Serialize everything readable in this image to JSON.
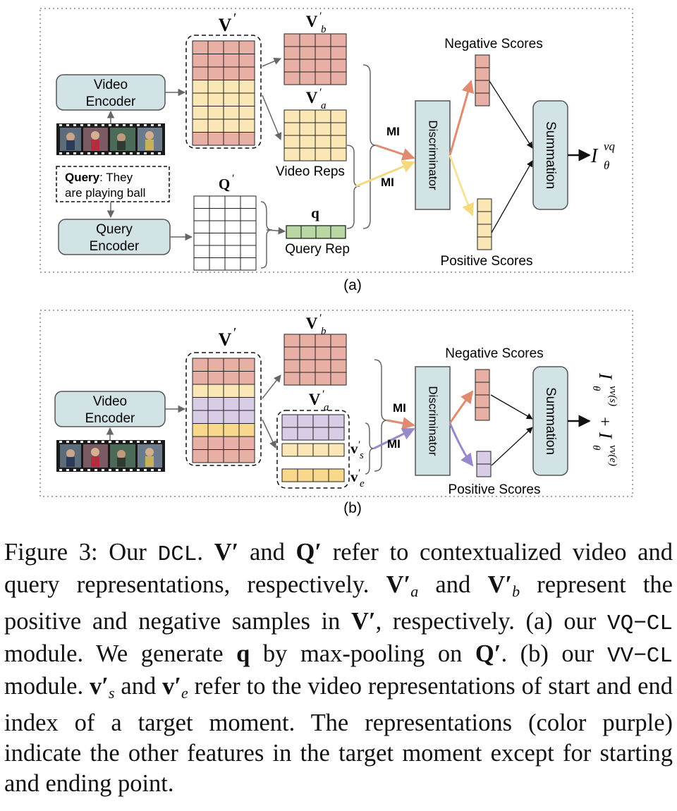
{
  "panel_a": {
    "label": "(a)",
    "video_encoder": [
      "Video",
      "Encoder"
    ],
    "query_encoder": [
      "Query",
      "Encoder"
    ],
    "query_label": "Query",
    "query_text_1": ": They",
    "query_text_2": "are playing ball",
    "v_prime": "V",
    "q_prime": "Q",
    "vb": "V",
    "va": "V",
    "sub_b": "b",
    "sub_a": "a",
    "video_reps": "Video Reps",
    "q": "q",
    "query_rep": "Query Rep",
    "mi_1": "MI",
    "mi_2": "MI",
    "discriminator": "Discriminator",
    "negative_scores": "Negative Scores",
    "positive_scores": "Positive  Scores",
    "summation": "Summation",
    "output_base": "I",
    "output_sub": "θ",
    "output_sup": "vq"
  },
  "panel_b": {
    "label": "(b)",
    "video_encoder": [
      "Video",
      "Encoder"
    ],
    "v_prime": "V",
    "vb": "V",
    "va": "V",
    "sub_b": "b",
    "sub_a": "a",
    "vs": "v",
    "ve": "v",
    "sub_s": "s",
    "sub_e": "e",
    "mi_1": "MI",
    "mi_2": "MI",
    "discriminator": "Discriminator",
    "negative_scores": "Negative Scores",
    "positive_scores": "Positive  Scores",
    "summation": "Summation",
    "output_1_base": "I",
    "output_1_sub": "θ",
    "output_1_sup": "vv(s)",
    "output_plus": "+",
    "output_2_base": "I",
    "output_2_sub": "θ",
    "output_2_sup": "vv(e)"
  },
  "caption": {
    "t1": "Figure 3: Our ",
    "dcl": "DCL",
    "t2": ". ",
    "V": "V′",
    "t3": " and ",
    "Q": "Q′",
    "t4": " refer to contextualized video and query representations, respectively. ",
    "Va": "V′",
    "Va_sub": "a",
    "t5": " and ",
    "Vb": "V′",
    "Vb_sub": "b",
    "t6": " represent the positive and negative samples in ",
    "V2": "V′",
    "t7": ", respectively. (a) our ",
    "vqcl": "VQ−CL",
    "t8": " module. We generate ",
    "q": "q",
    "t9": " by max-pooling on ",
    "Q2": "Q′",
    "t10": ". (b) our ",
    "vvcl": "VV−CL",
    "t11": " module. ",
    "vs": "v′",
    "vs_sub": "s",
    "t12": " and ",
    "ve": "v′",
    "ve_sub": "e",
    "t13": " refer to the video representations of start and end index of a target moment. The representations (color purple) indicate the other features in the target moment except for starting and ending point."
  },
  "colors": {
    "pink": "#e8b0a5",
    "yellow": "#fbe6b6",
    "purple": "#d8cce6",
    "gold": "#f8d88c",
    "green": "#b9d7a3",
    "teal_box": "#d2e3e6",
    "arrow_red": "#e08a70",
    "arrow_yellow": "#f8e39a",
    "arrow_purple": "#9a88cc"
  }
}
